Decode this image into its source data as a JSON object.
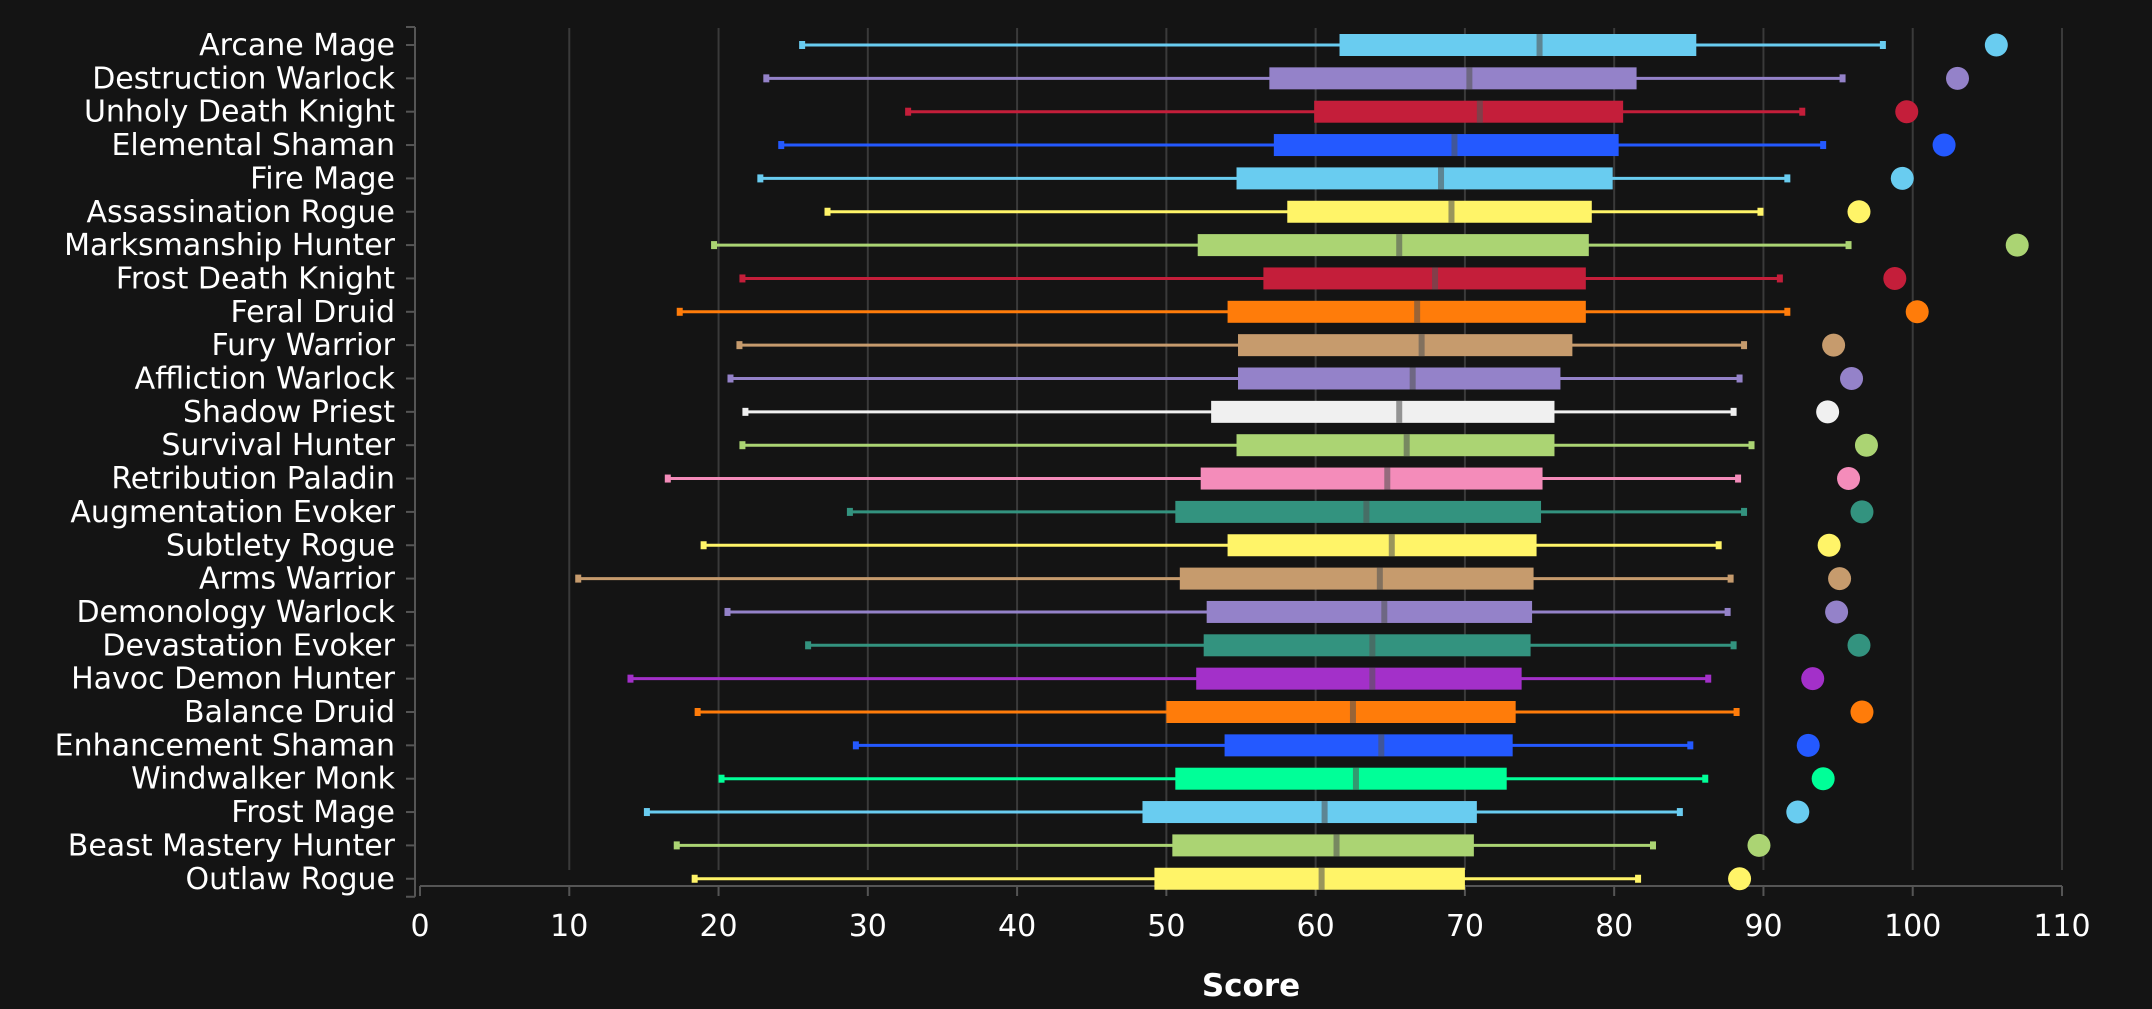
{
  "chart_data": {
    "type": "box",
    "xlabel": "Score",
    "xlim": [
      0,
      110
    ],
    "xticks": [
      0,
      10,
      20,
      30,
      40,
      50,
      60,
      70,
      80,
      90,
      100,
      110
    ],
    "grid": true,
    "series": [
      {
        "name": "Arcane Mage",
        "color": "#69ccf0",
        "min": 25.6,
        "q1": 61.6,
        "median": 75.0,
        "q3": 85.5,
        "max": 98.0,
        "max_point": 105.6
      },
      {
        "name": "Destruction Warlock",
        "color": "#9482c9",
        "min": 23.2,
        "q1": 56.9,
        "median": 70.3,
        "q3": 81.5,
        "max": 95.3,
        "max_point": 103.0
      },
      {
        "name": "Unholy Death Knight",
        "color": "#c41e3a",
        "min": 32.7,
        "q1": 59.9,
        "median": 71.0,
        "q3": 80.6,
        "max": 92.6,
        "max_point": 99.6
      },
      {
        "name": "Elemental Shaman",
        "color": "#2459ff",
        "min": 24.2,
        "q1": 57.2,
        "median": 69.3,
        "q3": 80.3,
        "max": 94.0,
        "max_point": 102.1
      },
      {
        "name": "Fire Mage",
        "color": "#69ccf0",
        "min": 22.8,
        "q1": 54.7,
        "median": 68.4,
        "q3": 79.9,
        "max": 91.6,
        "max_point": 99.3
      },
      {
        "name": "Assassination Rogue",
        "color": "#fff468",
        "min": 27.3,
        "q1": 58.1,
        "median": 69.1,
        "q3": 78.5,
        "max": 89.8,
        "max_point": 96.4
      },
      {
        "name": "Marksmanship Hunter",
        "color": "#abd473",
        "min": 19.7,
        "q1": 52.1,
        "median": 65.6,
        "q3": 78.3,
        "max": 95.7,
        "max_point": 107.0
      },
      {
        "name": "Frost Death Knight",
        "color": "#c41e3a",
        "min": 21.6,
        "q1": 56.5,
        "median": 68.0,
        "q3": 78.1,
        "max": 91.1,
        "max_point": 98.8
      },
      {
        "name": "Feral Druid",
        "color": "#ff7c0a",
        "min": 17.4,
        "q1": 54.1,
        "median": 66.8,
        "q3": 78.1,
        "max": 91.6,
        "max_point": 100.3
      },
      {
        "name": "Fury Warrior",
        "color": "#c69b6d",
        "min": 21.4,
        "q1": 54.8,
        "median": 67.1,
        "q3": 77.2,
        "max": 88.7,
        "max_point": 94.7
      },
      {
        "name": "Affliction Warlock",
        "color": "#9482c9",
        "min": 20.8,
        "q1": 54.8,
        "median": 66.5,
        "q3": 76.4,
        "max": 88.4,
        "max_point": 95.9
      },
      {
        "name": "Shadow Priest",
        "color": "#f0f0f0",
        "min": 21.8,
        "q1": 53.0,
        "median": 65.6,
        "q3": 76.0,
        "max": 88.0,
        "max_point": 94.3
      },
      {
        "name": "Survival Hunter",
        "color": "#abd473",
        "min": 21.6,
        "q1": 54.7,
        "median": 66.1,
        "q3": 76.0,
        "max": 89.2,
        "max_point": 96.9
      },
      {
        "name": "Retribution Paladin",
        "color": "#f48cba",
        "min": 16.6,
        "q1": 52.3,
        "median": 64.8,
        "q3": 75.2,
        "max": 88.3,
        "max_point": 95.7
      },
      {
        "name": "Augmentation Evoker",
        "color": "#33937f",
        "min": 28.8,
        "q1": 50.6,
        "median": 63.4,
        "q3": 75.1,
        "max": 88.7,
        "max_point": 96.6
      },
      {
        "name": "Subtlety Rogue",
        "color": "#fff468",
        "min": 19.0,
        "q1": 54.1,
        "median": 65.1,
        "q3": 74.8,
        "max": 87.0,
        "max_point": 94.4
      },
      {
        "name": "Arms Warrior",
        "color": "#c69b6d",
        "min": 10.6,
        "q1": 50.9,
        "median": 64.3,
        "q3": 74.6,
        "max": 87.8,
        "max_point": 95.1
      },
      {
        "name": "Demonology Warlock",
        "color": "#9482c9",
        "min": 20.6,
        "q1": 52.7,
        "median": 64.6,
        "q3": 74.5,
        "max": 87.6,
        "max_point": 94.9
      },
      {
        "name": "Devastation Evoker",
        "color": "#33937f",
        "min": 26.0,
        "q1": 52.5,
        "median": 63.8,
        "q3": 74.4,
        "max": 88.0,
        "max_point": 96.4
      },
      {
        "name": "Havoc Demon Hunter",
        "color": "#a330c9",
        "min": 14.1,
        "q1": 52.0,
        "median": 63.8,
        "q3": 73.8,
        "max": 86.3,
        "max_point": 93.3
      },
      {
        "name": "Balance Druid",
        "color": "#ff7c0a",
        "min": 18.6,
        "q1": 50.0,
        "median": 62.5,
        "q3": 73.4,
        "max": 88.2,
        "max_point": 96.6
      },
      {
        "name": "Enhancement Shaman",
        "color": "#2459ff",
        "min": 29.2,
        "q1": 53.9,
        "median": 64.4,
        "q3": 73.2,
        "max": 85.1,
        "max_point": 93.0
      },
      {
        "name": "Windwalker Monk",
        "color": "#00ff98",
        "min": 20.2,
        "q1": 50.6,
        "median": 62.7,
        "q3": 72.8,
        "max": 86.1,
        "max_point": 94.0
      },
      {
        "name": "Frost Mage",
        "color": "#69ccf0",
        "min": 15.2,
        "q1": 48.4,
        "median": 60.6,
        "q3": 70.8,
        "max": 84.4,
        "max_point": 92.3
      },
      {
        "name": "Beast Mastery Hunter",
        "color": "#abd473",
        "min": 17.2,
        "q1": 50.4,
        "median": 61.4,
        "q3": 70.6,
        "max": 82.6,
        "max_point": 89.7
      },
      {
        "name": "Outlaw Rogue",
        "color": "#fff468",
        "min": 18.4,
        "q1": 49.2,
        "median": 60.4,
        "q3": 70.0,
        "max": 81.6,
        "max_point": 88.4
      }
    ]
  }
}
